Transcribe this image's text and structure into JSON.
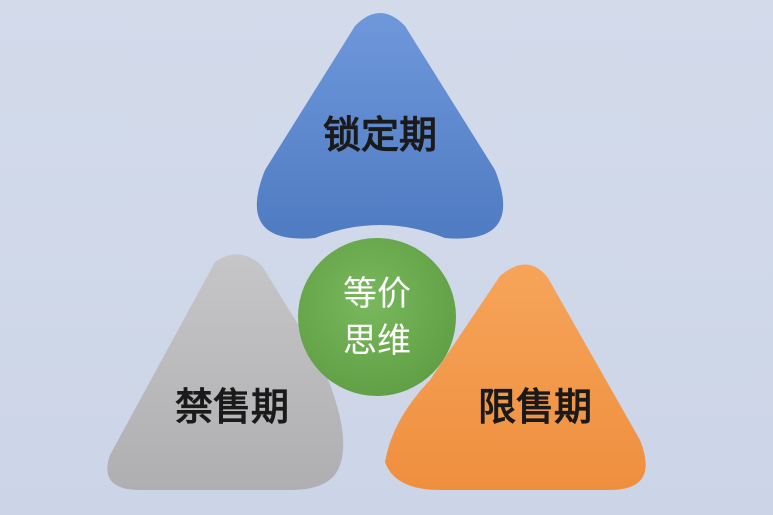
{
  "diagram": {
    "center": {
      "line1": "等价",
      "line2": "思维",
      "color": "#6aa84f",
      "text_color": "#ffffff"
    },
    "top": {
      "label": "锁定期",
      "color": "#5a86cc",
      "text_color": "#1a1a1a"
    },
    "left": {
      "label": "禁售期",
      "color": "#b9b9bb",
      "text_color": "#1a1a1a"
    },
    "right": {
      "label": "限售期",
      "color": "#f39a4d",
      "text_color": "#1a1a1a"
    }
  }
}
